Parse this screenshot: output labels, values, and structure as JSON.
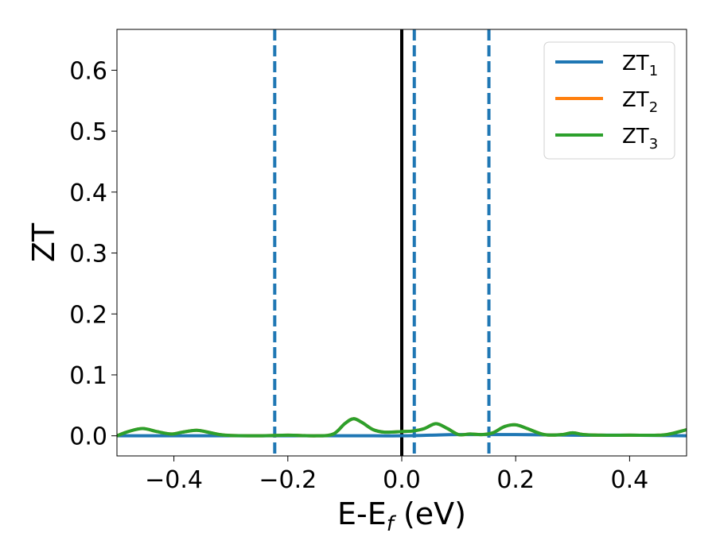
{
  "chart_data": {
    "type": "line",
    "xlabel": "E-E",
    "xlabel_sub": "f",
    "xlabel_unit": " (eV)",
    "ylabel": "ZT",
    "xlim": [
      -0.5,
      0.5
    ],
    "ylim": [
      -0.033,
      0.667
    ],
    "xticks": [
      -0.4,
      -0.2,
      0.0,
      0.2,
      0.4
    ],
    "xtick_labels": [
      "−0.4",
      "−0.2",
      "0.0",
      "0.2",
      "0.4"
    ],
    "yticks": [
      0.0,
      0.1,
      0.2,
      0.3,
      0.4,
      0.5,
      0.6
    ],
    "ytick_labels": [
      "0.0",
      "0.1",
      "0.2",
      "0.3",
      "0.4",
      "0.5",
      "0.6"
    ],
    "grid": false,
    "legend_position": "top-right",
    "series": [
      {
        "name": "ZT",
        "sub": "1",
        "color": "#1f77b4",
        "x": [
          -0.5,
          -0.3,
          -0.15,
          -0.05,
          0.0,
          0.05,
          0.1,
          0.2,
          0.3,
          0.4,
          0.5
        ],
        "y": [
          0.0,
          0.0,
          0.0,
          0.0,
          0.0,
          0.001,
          0.002,
          0.002,
          0.001,
          0.001,
          0.0
        ]
      },
      {
        "name": "ZT",
        "sub": "2",
        "color": "#ff7f0e",
        "x": [
          -0.5,
          -0.48,
          -0.455,
          -0.43,
          -0.405,
          -0.385,
          -0.36,
          -0.335,
          -0.31,
          -0.25,
          -0.2,
          -0.15,
          -0.12,
          -0.1,
          -0.085,
          -0.07,
          -0.05,
          -0.03,
          0.0,
          0.02,
          0.04,
          0.06,
          0.08,
          0.1,
          0.12,
          0.14,
          0.16,
          0.18,
          0.2,
          0.22,
          0.25,
          0.28,
          0.3,
          0.32,
          0.35,
          0.4,
          0.45,
          0.47,
          0.5
        ],
        "y": [
          0.0,
          0.007,
          0.012,
          0.007,
          0.003,
          0.006,
          0.009,
          0.005,
          0.001,
          0.0,
          0.001,
          0.0,
          0.003,
          0.02,
          0.028,
          0.022,
          0.01,
          0.006,
          0.007,
          0.008,
          0.012,
          0.02,
          0.012,
          0.002,
          0.003,
          0.002,
          0.005,
          0.015,
          0.018,
          0.012,
          0.002,
          0.002,
          0.005,
          0.002,
          0.001,
          0.001,
          0.001,
          0.003,
          0.01
        ]
      },
      {
        "name": "ZT",
        "sub": "3",
        "color": "#2ca02c",
        "x": [
          -0.5,
          -0.48,
          -0.455,
          -0.43,
          -0.405,
          -0.385,
          -0.36,
          -0.335,
          -0.31,
          -0.25,
          -0.2,
          -0.15,
          -0.12,
          -0.1,
          -0.085,
          -0.07,
          -0.05,
          -0.03,
          0.0,
          0.02,
          0.04,
          0.06,
          0.08,
          0.1,
          0.12,
          0.14,
          0.16,
          0.18,
          0.2,
          0.22,
          0.25,
          0.28,
          0.3,
          0.32,
          0.35,
          0.4,
          0.45,
          0.47,
          0.5
        ],
        "y": [
          0.0,
          0.007,
          0.012,
          0.007,
          0.003,
          0.006,
          0.009,
          0.005,
          0.001,
          0.0,
          0.001,
          0.0,
          0.003,
          0.02,
          0.028,
          0.022,
          0.01,
          0.006,
          0.007,
          0.008,
          0.012,
          0.02,
          0.012,
          0.002,
          0.003,
          0.002,
          0.005,
          0.015,
          0.018,
          0.012,
          0.002,
          0.002,
          0.005,
          0.002,
          0.001,
          0.001,
          0.001,
          0.003,
          0.01
        ]
      }
    ],
    "vlines": [
      {
        "x": -0.223,
        "color": "#1f77b4",
        "style": "dashed"
      },
      {
        "x": 0.0,
        "color": "#000000",
        "style": "solid"
      },
      {
        "x": 0.022,
        "color": "#1f77b4",
        "style": "dashed"
      },
      {
        "x": 0.153,
        "color": "#1f77b4",
        "style": "dashed"
      }
    ]
  }
}
